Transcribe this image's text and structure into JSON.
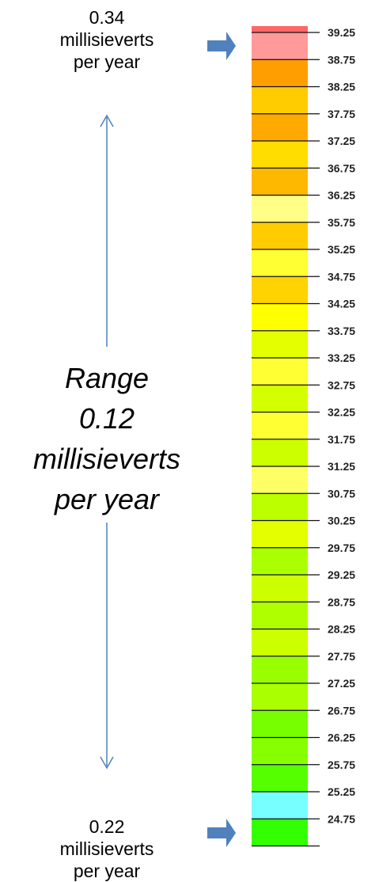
{
  "top_annotation": {
    "value": "0.34",
    "line2": "millisieverts",
    "line3": "per year"
  },
  "bottom_annotation": {
    "value": "0.22",
    "line2": "millisieverts",
    "line3": "per year"
  },
  "range_annotation": {
    "line1": "Range",
    "line2": "0.12",
    "line3": "millisieverts",
    "line4": "per year"
  },
  "scale": {
    "tick_labels": [
      "39.25",
      "38.75",
      "38.25",
      "37.75",
      "37.25",
      "36.75",
      "36.25",
      "35.75",
      "35.25",
      "34.75",
      "34.25",
      "33.75",
      "33.25",
      "32.75",
      "32.25",
      "31.75",
      "31.25",
      "30.75",
      "30.25",
      "29.75",
      "29.25",
      "28.75",
      "28.25",
      "27.75",
      "27.25",
      "26.75",
      "26.25",
      "25.75",
      "25.25",
      "24.75"
    ],
    "cell_colors": [
      "#ff9a9a",
      "#ff9e00",
      "#ffcc00",
      "#ffaa00",
      "#ffdd00",
      "#ffb800",
      "#ffff88",
      "#ffcc00",
      "#ffff33",
      "#ffd200",
      "#ffff00",
      "#e4ff00",
      "#ffff33",
      "#d4ff00",
      "#ffff33",
      "#ccff00",
      "#ffff66",
      "#bbff00",
      "#e4ff00",
      "#aaff00",
      "#ccff00",
      "#b0ff00",
      "#ccff00",
      "#99ff00",
      "#aaff00",
      "#77ff00",
      "#88ff00",
      "#55ff00",
      "#77ffff",
      "#33ff00"
    ],
    "top_sliver_color": "#ff6666",
    "arrow_color": "#4f81bd"
  }
}
